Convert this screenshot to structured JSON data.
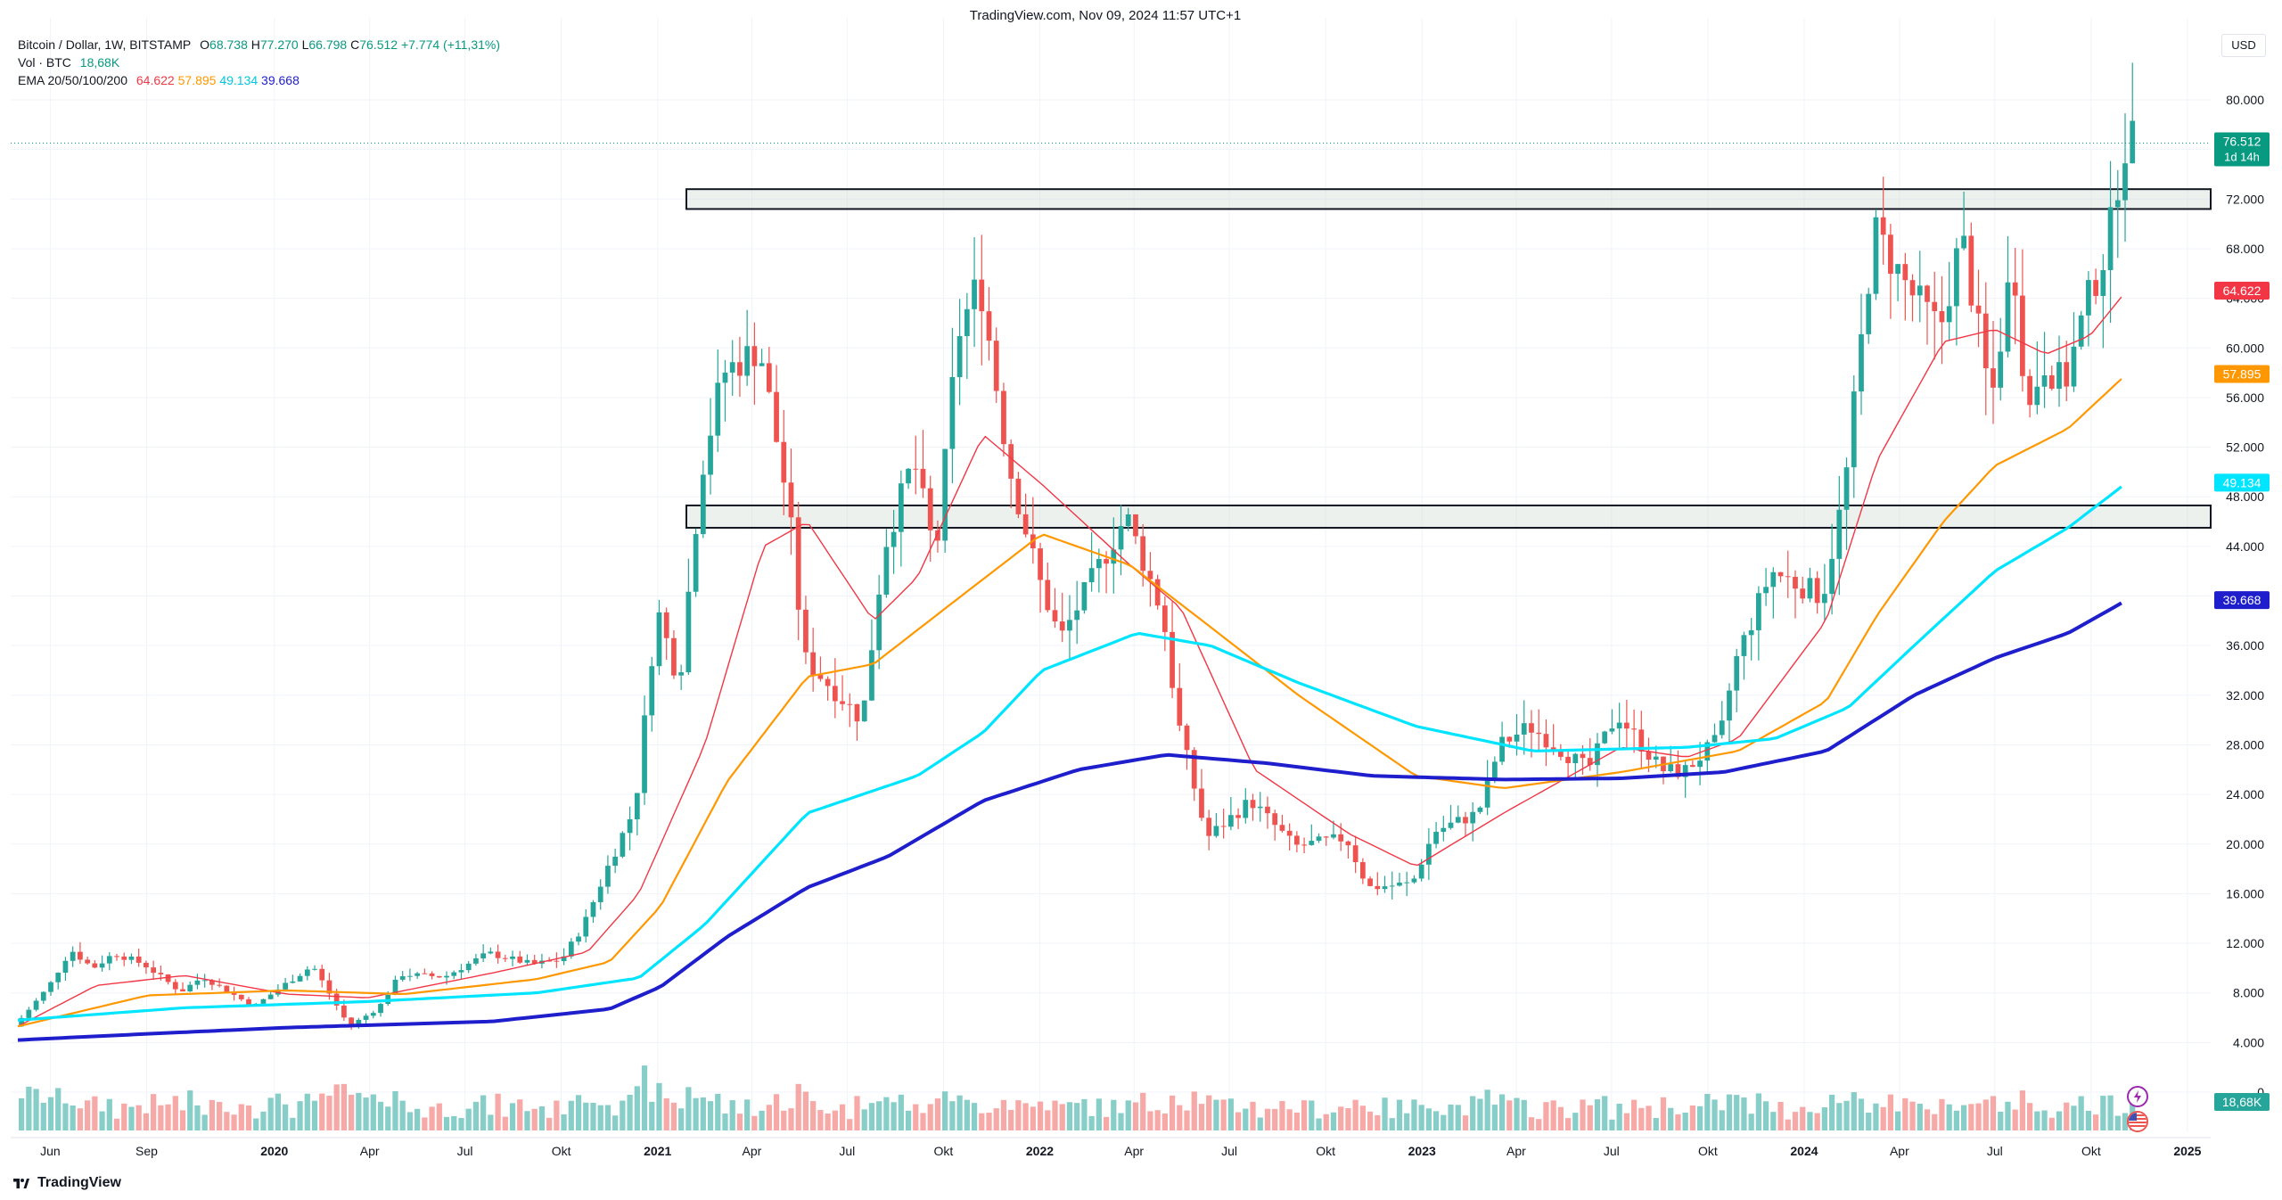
{
  "header": {
    "top_line": "TradingView.com, Nov 09, 2024 11:57 UTC+1",
    "symbol": "Bitcoin / Dollar, 1W, BITSTAMP",
    "ohlc": {
      "O": "68.738",
      "H": "77.270",
      "L": "66.798",
      "C": "76.512",
      "change": "+7.774 (+11,31%)"
    },
    "volume_label": "Vol · BTC",
    "volume_value": "18,68K",
    "ema_label": "EMA 20/50/100/200",
    "ema_values": [
      "64.622",
      "57.895",
      "49.134",
      "39.668"
    ]
  },
  "currency": "USD",
  "brand": "TradingView",
  "colors": {
    "up": "#26a69a",
    "down": "#ef5350",
    "ema20": "#f23645",
    "ema50": "#ff9800",
    "ema100": "#00e5ff",
    "ema200": "#1e1ecc",
    "last_price": "#089981"
  },
  "chart_data": {
    "type": "candlestick",
    "interval": "1W",
    "ylim": [
      0,
      82000
    ],
    "y_ticks": [
      "0",
      "4.000",
      "8.000",
      "12.000",
      "16.000",
      "20.000",
      "24.000",
      "28.000",
      "32.000",
      "36.000",
      "40.000",
      "44.000",
      "48.000",
      "52.000",
      "56.000",
      "60.000",
      "64.000",
      "68.000",
      "72.000",
      "76.000",
      "80.000"
    ],
    "y_tick_values": [
      0,
      4000,
      8000,
      12000,
      16000,
      20000,
      24000,
      28000,
      32000,
      36000,
      40000,
      44000,
      48000,
      52000,
      56000,
      60000,
      64000,
      68000,
      72000,
      76000,
      80000
    ],
    "x_ticks": [
      "Jun",
      "Sep",
      "2020",
      "Apr",
      "Jul",
      "Okt",
      "2021",
      "Apr",
      "Jul",
      "Okt",
      "2022",
      "Apr",
      "Jul",
      "Okt",
      "2023",
      "Apr",
      "Jul",
      "Okt",
      "2024",
      "Apr",
      "Jul",
      "Okt",
      "2025"
    ],
    "x_tick_dates": [
      "2019-06-01",
      "2019-09-01",
      "2020-01-01",
      "2020-04-01",
      "2020-07-01",
      "2020-10-01",
      "2021-01-01",
      "2021-04-01",
      "2021-07-01",
      "2021-10-01",
      "2022-01-01",
      "2022-04-01",
      "2022-07-01",
      "2022-10-01",
      "2023-01-01",
      "2023-04-01",
      "2023-07-01",
      "2023-10-01",
      "2024-01-01",
      "2024-04-01",
      "2024-07-01",
      "2024-10-01",
      "2025-01-01"
    ],
    "price_path": [
      [
        "2019-05-01",
        5300
      ],
      [
        "2019-06-03",
        8500
      ],
      [
        "2019-06-24",
        11500
      ],
      [
        "2019-07-15",
        10000
      ],
      [
        "2019-08-05",
        11200
      ],
      [
        "2019-09-02",
        10300
      ],
      [
        "2019-10-07",
        8100
      ],
      [
        "2019-10-28",
        9300
      ],
      [
        "2019-12-16",
        6900
      ],
      [
        "2020-01-13",
        8600
      ],
      [
        "2020-02-10",
        10200
      ],
      [
        "2020-03-16",
        5300
      ],
      [
        "2020-04-13",
        6800
      ],
      [
        "2020-05-04",
        9500
      ],
      [
        "2020-06-15",
        9300
      ],
      [
        "2020-07-27",
        11200
      ],
      [
        "2020-09-07",
        10300
      ],
      [
        "2020-10-05",
        10700
      ],
      [
        "2020-10-26",
        13500
      ],
      [
        "2020-11-16",
        17800
      ],
      [
        "2020-12-14",
        23000
      ],
      [
        "2021-01-04",
        39000
      ],
      [
        "2021-01-25",
        33000
      ],
      [
        "2021-02-15",
        50000
      ],
      [
        "2021-03-08",
        58000
      ],
      [
        "2021-04-12",
        60000
      ],
      [
        "2021-05-10",
        47000
      ],
      [
        "2021-05-24",
        35000
      ],
      [
        "2021-06-21",
        32500
      ],
      [
        "2021-07-19",
        30000
      ],
      [
        "2021-08-09",
        44000
      ],
      [
        "2021-09-06",
        51000
      ],
      [
        "2021-09-27",
        43000
      ],
      [
        "2021-10-18",
        61000
      ],
      [
        "2021-11-08",
        65500
      ],
      [
        "2021-12-06",
        50500
      ],
      [
        "2022-01-03",
        41500
      ],
      [
        "2022-01-24",
        36500
      ],
      [
        "2022-03-28",
        46500
      ],
      [
        "2022-05-02",
        38500
      ],
      [
        "2022-05-16",
        30000
      ],
      [
        "2022-06-13",
        20500
      ],
      [
        "2022-07-25",
        23500
      ],
      [
        "2022-09-05",
        19800
      ],
      [
        "2022-10-24",
        20500
      ],
      [
        "2022-11-14",
        16500
      ],
      [
        "2022-12-26",
        16800
      ],
      [
        "2023-01-16",
        21000
      ],
      [
        "2023-02-27",
        22500
      ],
      [
        "2023-03-20",
        28000
      ],
      [
        "2023-04-17",
        29500
      ],
      [
        "2023-06-12",
        26000
      ],
      [
        "2023-07-10",
        30500
      ],
      [
        "2023-08-21",
        26000
      ],
      [
        "2023-09-11",
        25800
      ],
      [
        "2023-10-16",
        28500
      ],
      [
        "2023-10-30",
        34500
      ],
      [
        "2023-12-04",
        42000
      ],
      [
        "2024-01-22",
        40000
      ],
      [
        "2024-02-12",
        48500
      ],
      [
        "2024-03-11",
        69500
      ],
      [
        "2024-04-15",
        64500
      ],
      [
        "2024-05-13",
        61500
      ],
      [
        "2024-06-03",
        69000
      ],
      [
        "2024-07-01",
        55500
      ],
      [
        "2024-07-22",
        67500
      ],
      [
        "2024-08-05",
        54500
      ],
      [
        "2024-08-19",
        59000
      ],
      [
        "2024-09-09",
        57000
      ],
      [
        "2024-09-30",
        63500
      ],
      [
        "2024-10-21",
        68500
      ],
      [
        "2024-11-04",
        76512
      ]
    ],
    "ema_paths": [
      {
        "name": "EMA 20",
        "last": 64622,
        "points": [
          [
            "2019-05-01",
            5300
          ],
          [
            "2019-07-15",
            8600
          ],
          [
            "2019-10-07",
            9400
          ],
          [
            "2020-01-13",
            7900
          ],
          [
            "2020-03-30",
            7600
          ],
          [
            "2020-07-27",
            9600
          ],
          [
            "2020-10-26",
            11300
          ],
          [
            "2020-12-14",
            16000
          ],
          [
            "2021-02-15",
            28000
          ],
          [
            "2021-04-12",
            44000
          ],
          [
            "2021-05-24",
            46000
          ],
          [
            "2021-07-26",
            38000
          ],
          [
            "2021-09-06",
            41500
          ],
          [
            "2021-11-08",
            53000
          ],
          [
            "2022-01-03",
            49000
          ],
          [
            "2022-03-28",
            42500
          ],
          [
            "2022-05-16",
            39000
          ],
          [
            "2022-07-25",
            26000
          ],
          [
            "2022-10-24",
            20800
          ],
          [
            "2022-12-26",
            18200
          ],
          [
            "2023-03-20",
            22500
          ],
          [
            "2023-07-10",
            27800
          ],
          [
            "2023-09-11",
            27000
          ],
          [
            "2023-10-30",
            28500
          ],
          [
            "2024-01-22",
            38000
          ],
          [
            "2024-03-11",
            51000
          ],
          [
            "2024-05-13",
            60500
          ],
          [
            "2024-07-01",
            61500
          ],
          [
            "2024-08-19",
            59500
          ],
          [
            "2024-09-30",
            61000
          ],
          [
            "2024-11-04",
            64622
          ]
        ]
      },
      {
        "name": "EMA 50",
        "last": 57895,
        "points": [
          [
            "2019-05-01",
            5300
          ],
          [
            "2019-09-02",
            7800
          ],
          [
            "2020-01-13",
            8200
          ],
          [
            "2020-05-04",
            7900
          ],
          [
            "2020-09-07",
            9100
          ],
          [
            "2020-11-16",
            10500
          ],
          [
            "2021-01-04",
            15000
          ],
          [
            "2021-03-08",
            25000
          ],
          [
            "2021-05-24",
            33500
          ],
          [
            "2021-07-26",
            34500
          ],
          [
            "2021-10-18",
            40000
          ],
          [
            "2022-01-03",
            45000
          ],
          [
            "2022-03-28",
            42500
          ],
          [
            "2022-06-13",
            37500
          ],
          [
            "2022-09-05",
            32000
          ],
          [
            "2022-12-26",
            25500
          ],
          [
            "2023-03-20",
            24500
          ],
          [
            "2023-07-10",
            25800
          ],
          [
            "2023-10-30",
            27500
          ],
          [
            "2024-01-22",
            31500
          ],
          [
            "2024-03-11",
            38500
          ],
          [
            "2024-05-13",
            46000
          ],
          [
            "2024-07-01",
            50500
          ],
          [
            "2024-09-09",
            53500
          ],
          [
            "2024-11-04",
            57895
          ]
        ]
      },
      {
        "name": "EMA 100",
        "last": 49134,
        "points": [
          [
            "2019-05-01",
            5800
          ],
          [
            "2019-10-07",
            6800
          ],
          [
            "2020-03-30",
            7300
          ],
          [
            "2020-09-07",
            8000
          ],
          [
            "2020-12-14",
            9200
          ],
          [
            "2021-02-15",
            13500
          ],
          [
            "2021-05-24",
            22500
          ],
          [
            "2021-09-06",
            25500
          ],
          [
            "2021-11-08",
            29000
          ],
          [
            "2022-01-03",
            34000
          ],
          [
            "2022-04-04",
            37000
          ],
          [
            "2022-06-13",
            36000
          ],
          [
            "2022-09-05",
            33000
          ],
          [
            "2022-12-26",
            29500
          ],
          [
            "2023-04-17",
            27500
          ],
          [
            "2023-09-11",
            27800
          ],
          [
            "2023-12-04",
            28500
          ],
          [
            "2024-02-12",
            31000
          ],
          [
            "2024-04-15",
            36000
          ],
          [
            "2024-07-01",
            42000
          ],
          [
            "2024-09-09",
            45500
          ],
          [
            "2024-11-04",
            49134
          ]
        ]
      },
      {
        "name": "EMA 200",
        "last": 39668,
        "points": [
          [
            "2019-05-01",
            4200
          ],
          [
            "2019-09-02",
            4700
          ],
          [
            "2020-01-13",
            5200
          ],
          [
            "2020-07-27",
            5700
          ],
          [
            "2020-11-16",
            6700
          ],
          [
            "2021-01-04",
            8500
          ],
          [
            "2021-03-08",
            12500
          ],
          [
            "2021-05-24",
            16500
          ],
          [
            "2021-08-09",
            19000
          ],
          [
            "2021-11-08",
            23500
          ],
          [
            "2022-02-07",
            26000
          ],
          [
            "2022-05-02",
            27200
          ],
          [
            "2022-08-08",
            26500
          ],
          [
            "2022-11-14",
            25500
          ],
          [
            "2023-03-20",
            25200
          ],
          [
            "2023-07-10",
            25300
          ],
          [
            "2023-10-16",
            25800
          ],
          [
            "2024-01-22",
            27500
          ],
          [
            "2024-04-15",
            32000
          ],
          [
            "2024-07-01",
            35000
          ],
          [
            "2024-09-09",
            37000
          ],
          [
            "2024-11-04",
            39668
          ]
        ]
      }
    ],
    "zones": [
      {
        "low": 71200,
        "high": 72800,
        "from": "2021-01-04",
        "to": "2024-11-11"
      },
      {
        "low": 45500,
        "high": 47300,
        "from": "2021-01-04",
        "to": "2024-11-11"
      }
    ],
    "price_labels": [
      {
        "value": "76.512",
        "sub": "1d 14h",
        "y": 76512,
        "color": "#089981"
      },
      {
        "value": "64.622",
        "y": 64622,
        "color": "#f23645"
      },
      {
        "value": "57.895",
        "y": 57895,
        "color": "#ff9800"
      },
      {
        "value": "49.134",
        "y": 49134,
        "color": "#00e5ff"
      },
      {
        "value": "39.668",
        "y": 39668,
        "color": "#1e1ecc"
      },
      {
        "value": "18,68K",
        "y": -2000,
        "color": "#26a69a"
      }
    ],
    "last_price": 76512
  }
}
